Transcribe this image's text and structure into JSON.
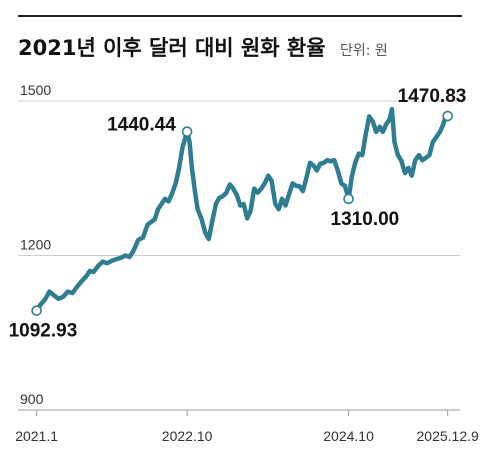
{
  "header": {
    "title": "2021년 이후 달러 대비 원화 환율",
    "unit": "단위: 원"
  },
  "colors": {
    "line": "#2f7d93",
    "rule": "#222222",
    "grid": "#cfcfcf",
    "axis": "#9a9a9a",
    "point_fill": "#ffffff"
  },
  "chart_data": {
    "type": "line",
    "title": "2021년 이후 달러 대비 원화 환율",
    "unit": "단위: 원",
    "xlabel": "",
    "ylabel": "",
    "ylim": [
      900,
      1500
    ],
    "xlim": [
      "2020-11-01",
      "2026-02-01"
    ],
    "grid": true,
    "legend": "none",
    "yticks": [
      900,
      1200,
      1500
    ],
    "ytick_labels": [
      "900",
      "1200",
      "1500"
    ],
    "xticks": [
      "2021-01-04",
      "2022-10-25",
      "2024-10-01",
      "2025-12-09"
    ],
    "xtick_labels": [
      "2021.1",
      "2022.10",
      "2024.10",
      "2025.12.9"
    ],
    "series": [
      {
        "x": [
          "2021-01-04",
          "2021-01-22",
          "2021-02-10",
          "2021-03-01",
          "2021-03-20",
          "2021-04-10",
          "2021-05-01",
          "2021-05-20",
          "2021-06-10",
          "2021-07-01",
          "2021-07-20",
          "2021-08-10",
          "2021-08-25",
          "2021-09-10",
          "2021-10-01",
          "2021-10-20",
          "2021-11-10",
          "2021-12-01",
          "2021-12-20",
          "2022-01-10",
          "2022-01-28",
          "2022-02-15",
          "2022-03-05",
          "2022-03-25",
          "2022-04-15",
          "2022-05-05",
          "2022-05-20",
          "2022-06-05",
          "2022-06-20",
          "2022-07-05",
          "2022-07-20",
          "2022-08-05",
          "2022-08-20",
          "2022-09-05",
          "2022-09-20",
          "2022-10-05",
          "2022-10-25",
          "2022-11-05",
          "2022-11-15",
          "2022-11-28",
          "2022-12-10",
          "2022-12-28",
          "2023-01-12",
          "2023-01-28",
          "2023-02-10",
          "2023-02-28",
          "2023-03-15",
          "2023-03-30",
          "2023-04-15",
          "2023-04-30",
          "2023-05-15",
          "2023-05-30",
          "2023-06-15",
          "2023-06-30",
          "2023-07-15",
          "2023-07-30",
          "2023-08-15",
          "2023-08-30",
          "2023-09-15",
          "2023-09-30",
          "2023-10-15",
          "2023-10-30",
          "2023-11-15",
          "2023-11-30",
          "2023-12-15",
          "2023-12-30",
          "2024-01-15",
          "2024-01-30",
          "2024-02-15",
          "2024-02-28",
          "2024-03-15",
          "2024-03-30",
          "2024-04-15",
          "2024-04-30",
          "2024-05-15",
          "2024-05-30",
          "2024-06-15",
          "2024-06-30",
          "2024-07-15",
          "2024-07-30",
          "2024-08-15",
          "2024-08-30",
          "2024-09-15",
          "2024-10-01",
          "2024-10-15",
          "2024-10-30",
          "2024-11-15",
          "2024-11-30",
          "2024-12-15",
          "2024-12-30",
          "2025-01-15",
          "2025-01-30",
          "2025-02-15",
          "2025-02-28",
          "2025-03-15",
          "2025-03-30",
          "2025-04-09",
          "2025-04-20",
          "2025-05-05",
          "2025-05-20",
          "2025-06-05",
          "2025-06-20",
          "2025-07-05",
          "2025-07-20",
          "2025-08-05",
          "2025-08-20",
          "2025-09-05",
          "2025-09-20",
          "2025-10-05",
          "2025-10-20",
          "2025-11-05",
          "2025-11-20",
          "2025-12-01",
          "2025-12-09"
        ],
        "values": [
          1092.93,
          1105,
          1115,
          1130,
          1123,
          1116,
          1120,
          1130,
          1127,
          1140,
          1150,
          1160,
          1170,
          1168,
          1180,
          1188,
          1185,
          1190,
          1193,
          1196,
          1200,
          1197,
          1210,
          1230,
          1235,
          1260,
          1265,
          1270,
          1290,
          1300,
          1310,
          1305,
          1320,
          1340,
          1370,
          1410,
          1440.44,
          1420,
          1370,
          1325,
          1290,
          1270,
          1245,
          1232,
          1262,
          1300,
          1312,
          1315,
          1322,
          1338,
          1330,
          1318,
          1297,
          1300,
          1272,
          1287,
          1330,
          1322,
          1330,
          1340,
          1355,
          1345,
          1300,
          1290,
          1310,
          1297,
          1320,
          1340,
          1335,
          1335,
          1325,
          1350,
          1380,
          1375,
          1365,
          1378,
          1380,
          1385,
          1383,
          1385,
          1365,
          1340,
          1335,
          1310.0,
          1353,
          1380,
          1398,
          1395,
          1435,
          1470,
          1460,
          1440,
          1450,
          1440,
          1455,
          1465,
          1484,
          1420,
          1395,
          1384,
          1360,
          1370,
          1355,
          1385,
          1395,
          1385,
          1390,
          1395,
          1420,
          1430,
          1440,
          1455,
          1470,
          1470.83
        ]
      }
    ],
    "annotations": [
      {
        "x": "2021-01-04",
        "y": 1092.93,
        "label": "1092.93"
      },
      {
        "x": "2022-10-25",
        "y": 1440.44,
        "label": "1440.44"
      },
      {
        "x": "2024-10-01",
        "y": 1310.0,
        "label": "1310.00"
      },
      {
        "x": "2025-12-09",
        "y": 1470.83,
        "label": "1470.83"
      }
    ]
  }
}
